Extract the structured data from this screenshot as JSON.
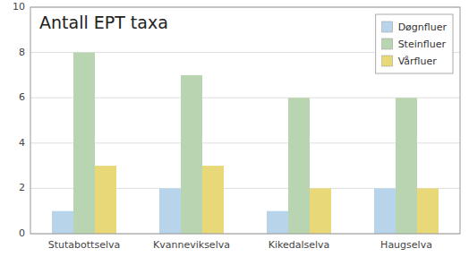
{
  "chart_data": {
    "type": "bar",
    "title": "Antall EPT taxa",
    "categories": [
      "Stutabottselva",
      "Kvannevikselva",
      "Kikedalselva",
      "Haugselva"
    ],
    "series": [
      {
        "name": "Døgnfluer",
        "color": "#b8d4ea",
        "values": [
          1,
          2,
          1,
          2
        ]
      },
      {
        "name": "Steinfluer",
        "color": "#b8d4b0",
        "values": [
          8,
          7,
          6,
          6
        ]
      },
      {
        "name": "Vårfluer",
        "color": "#e8d878",
        "values": [
          3,
          3,
          2,
          2
        ]
      }
    ],
    "ylim": [
      0,
      10
    ],
    "yticks": [
      0,
      2,
      4,
      6,
      8,
      10
    ],
    "grid": true,
    "legend": "upper right"
  }
}
